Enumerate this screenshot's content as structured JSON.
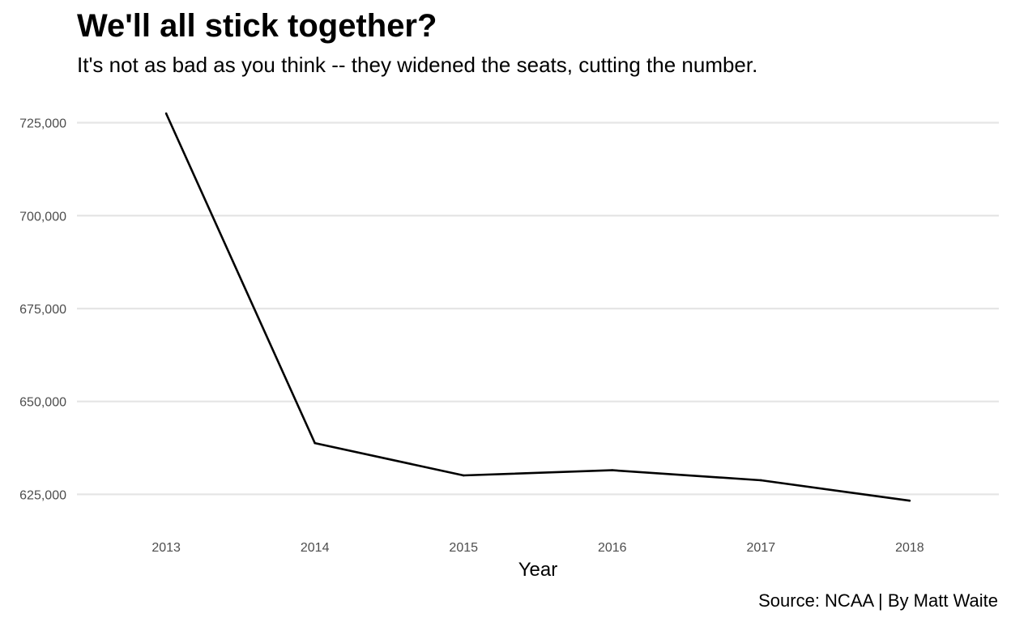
{
  "chart_data": {
    "type": "line",
    "title": "We'll all stick together?",
    "subtitle": "It's not as bad as you think -- they widened the seats, cutting the number.",
    "caption": "Source: NCAA | By Matt Waite",
    "xlabel": "Year",
    "ylabel": "",
    "x": [
      2013,
      2014,
      2015,
      2016,
      2017,
      2018
    ],
    "values": [
      727500,
      638800,
      630100,
      631500,
      628800,
      623300
    ],
    "x_ticks": [
      "2013",
      "2014",
      "2015",
      "2016",
      "2017",
      "2018"
    ],
    "y_ticks": [
      625000,
      650000,
      675000,
      700000,
      725000
    ],
    "y_tick_labels": [
      "625,000",
      "650,000",
      "675,000",
      "700,000",
      "725,000"
    ],
    "ylim": [
      615500,
      731000
    ],
    "xlim": [
      2012.4,
      2018.6
    ],
    "grid": "horizontal",
    "line_color": "#000000",
    "grid_color": "#e5e5e5"
  }
}
